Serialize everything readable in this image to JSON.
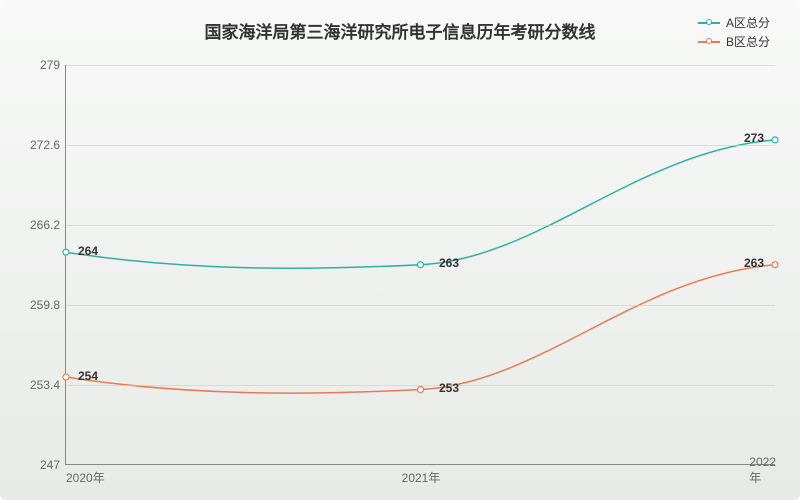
{
  "title": "国家海洋局第三海洋研究所电子信息历年考研分数线",
  "title_fontsize": 17,
  "background_gradient": [
    "#f8f9f8",
    "#e8eae8"
  ],
  "legend": {
    "position": "top-right",
    "items": [
      {
        "label": "A区总分",
        "color": "#2bb39a"
      },
      {
        "label": "B区总分",
        "color": "#e67b4f"
      }
    ]
  },
  "xaxis": {
    "categories": [
      "2020年",
      "2021年",
      "2022年"
    ],
    "color": "#666",
    "fontsize": 12
  },
  "yaxis": {
    "min": 247,
    "max": 279,
    "ticks": [
      247,
      253.4,
      259.8,
      266.2,
      272.6,
      279
    ],
    "grid_color": "#cccccc",
    "label_color": "#666",
    "fontsize": 12
  },
  "series": [
    {
      "name": "A区总分",
      "color": "#2bb39a",
      "line_width": 1.5,
      "marker": "hollow-circle",
      "marker_size": 6,
      "smooth": true,
      "values": [
        264,
        263,
        273
      ],
      "labels": [
        "264",
        "263",
        "273"
      ]
    },
    {
      "name": "B区总分",
      "color": "#e67b4f",
      "line_width": 1.5,
      "marker": "hollow-circle",
      "marker_size": 6,
      "smooth": true,
      "values": [
        254,
        253,
        263
      ],
      "labels": [
        "254",
        "253",
        "263"
      ]
    }
  ],
  "label_fontsize": 12,
  "label_color": "#333333"
}
